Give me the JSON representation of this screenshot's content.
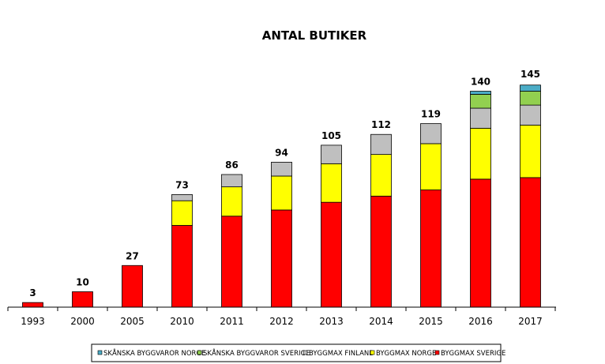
{
  "chart_data": {
    "type": "bar",
    "stacked": true,
    "title": "ANTAL BUTIKER",
    "categories": [
      "1993",
      "2000",
      "2005",
      "2010",
      "2011",
      "2012",
      "2013",
      "2014",
      "2015",
      "2016",
      "2017"
    ],
    "totals": [
      3,
      10,
      27,
      73,
      86,
      94,
      105,
      112,
      119,
      140,
      145
    ],
    "series": [
      {
        "name": "BYGGMAX SVERIGE",
        "color": "#ff0000",
        "values": [
          3,
          10,
          27,
          53,
          59,
          63,
          68,
          72,
          76,
          83,
          84
        ]
      },
      {
        "name": "BYGGMAX NORGE",
        "color": "#ffff00",
        "values": [
          0,
          0,
          0,
          16,
          19,
          22,
          25,
          27,
          30,
          33,
          34
        ]
      },
      {
        "name": "BYGGMAX FINLAND",
        "color": "#bfbfbf",
        "values": [
          0,
          0,
          0,
          4,
          8,
          9,
          12,
          13,
          13,
          13,
          13
        ]
      },
      {
        "name": "SKÅNSKA BYGGVAROR SVERIGE",
        "color": "#92d050",
        "values": [
          0,
          0,
          0,
          0,
          0,
          0,
          0,
          0,
          0,
          9,
          9
        ]
      },
      {
        "name": "SKÅNSKA BYGGVAROR NORGE",
        "color": "#4bacc6",
        "values": [
          0,
          0,
          0,
          0,
          0,
          0,
          0,
          0,
          0,
          2,
          4
        ]
      }
    ],
    "legend_order": [
      "SKÅNSKA BYGGVAROR NORGE",
      "SKÅNSKA BYGGVAROR SVERIGE",
      "BYGGMAX FINLAND",
      "BYGGMAX NORGE",
      "BYGGMAX SVERIGE"
    ],
    "legend_position": "bottom",
    "ylim": [
      0,
      150
    ],
    "xlabel": "",
    "ylabel": "",
    "grid": false
  }
}
